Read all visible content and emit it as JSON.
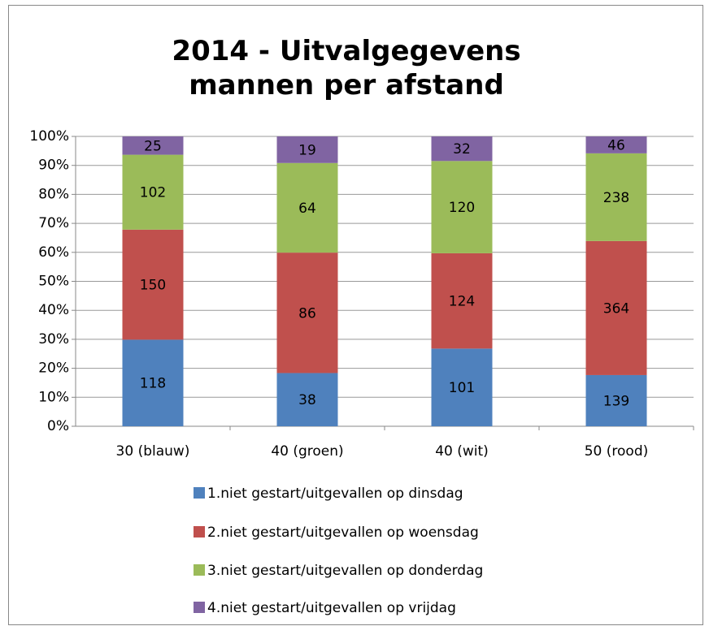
{
  "chart_data": {
    "type": "stacked_percent_bar",
    "title": "2014 - Uitvalgegevens mannen per afstand",
    "categories": [
      "30 (blauw)",
      "40 (groen)",
      "40 (wit)",
      "50 (rood)"
    ],
    "series": [
      {
        "name": "1.niet gestart/uitgevallen op dinsdag",
        "color": "#4f81bd",
        "values": [
          118,
          38,
          101,
          139
        ]
      },
      {
        "name": "2.niet gestart/uitgevallen op woensdag",
        "color": "#c0504d",
        "values": [
          150,
          86,
          124,
          364
        ]
      },
      {
        "name": "3.niet gestart/uitgevallen op donderdag",
        "color": "#9bbb59",
        "values": [
          102,
          64,
          120,
          238
        ]
      },
      {
        "name": "4.niet gestart/uitgevallen op vrijdag",
        "color": "#8064a2",
        "values": [
          25,
          19,
          32,
          46
        ]
      }
    ],
    "ylim": [
      0,
      100
    ],
    "yticks": [
      {
        "value": 0,
        "label": "0%"
      },
      {
        "value": 10,
        "label": "10%"
      },
      {
        "value": 20,
        "label": "20%"
      },
      {
        "value": 30,
        "label": "30%"
      },
      {
        "value": 40,
        "label": "40%"
      },
      {
        "value": 50,
        "label": "50%"
      },
      {
        "value": 60,
        "label": "60%"
      },
      {
        "value": 70,
        "label": "70%"
      },
      {
        "value": 80,
        "label": "80%"
      },
      {
        "value": 90,
        "label": "90%"
      },
      {
        "value": 100,
        "label": "100%"
      }
    ],
    "grid": true,
    "legend": "bottom"
  }
}
